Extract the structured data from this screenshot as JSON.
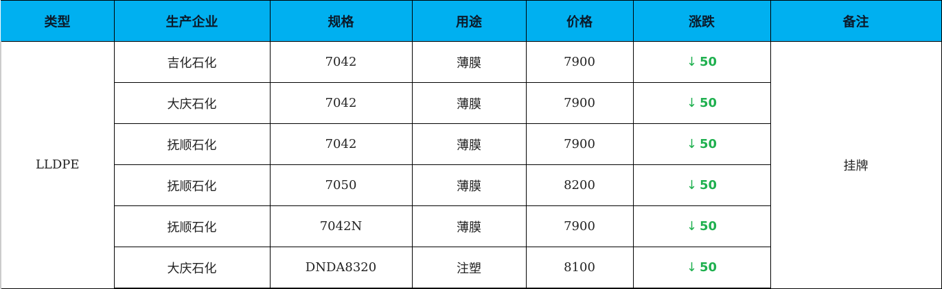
{
  "headers": [
    "类型",
    "生产企业",
    "规格",
    "用途",
    "价格",
    "涨跌",
    "备注"
  ],
  "type": "LLDPE",
  "remark": "挂牌",
  "change_icon": "arrow-down-icon",
  "change_color": "#1fb04f",
  "header_color": "#00b0f0",
  "rows": [
    {
      "company": "吉化石化",
      "spec": "7042",
      "use": "薄膜",
      "price": "7900",
      "change": "50"
    },
    {
      "company": "大庆石化",
      "spec": "7042",
      "use": "薄膜",
      "price": "7900",
      "change": "50"
    },
    {
      "company": "抚顺石化",
      "spec": "7042",
      "use": "薄膜",
      "price": "7900",
      "change": "50"
    },
    {
      "company": "抚顺石化",
      "spec": "7050",
      "use": "薄膜",
      "price": "8200",
      "change": "50"
    },
    {
      "company": "抚顺石化",
      "spec": "7042N",
      "use": "薄膜",
      "price": "7900",
      "change": "50"
    },
    {
      "company": "大庆石化",
      "spec": "DNDA8320",
      "use": "注塑",
      "price": "8100",
      "change": "50"
    }
  ]
}
